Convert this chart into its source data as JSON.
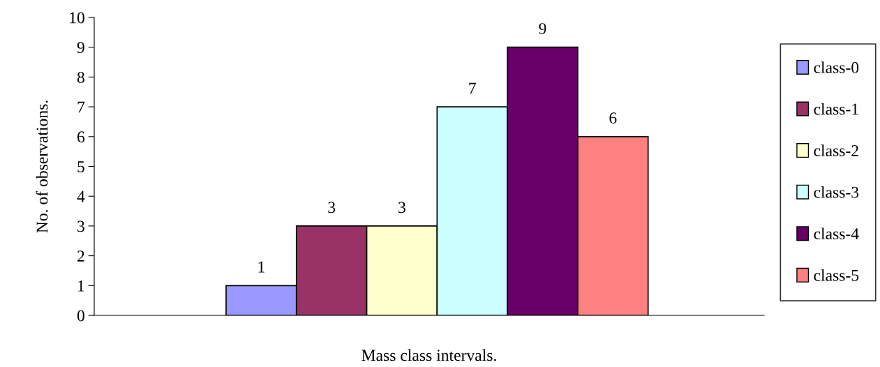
{
  "chart_data": {
    "type": "bar",
    "xlabel": "Mass class intervals.",
    "ylabel": "No. of observations.",
    "categories": [
      null
    ],
    "series": [
      {
        "name": "class-0",
        "color": "#9999ff",
        "values": [
          1
        ]
      },
      {
        "name": "class-1",
        "color": "#993366",
        "values": [
          3
        ]
      },
      {
        "name": "class-2",
        "color": "#ffffcc",
        "values": [
          3
        ]
      },
      {
        "name": "class-3",
        "color": "#ccffff",
        "values": [
          7
        ]
      },
      {
        "name": "class-4",
        "color": "#660066",
        "values": [
          9
        ]
      },
      {
        "name": "class-5",
        "color": "#ff8080",
        "values": [
          6
        ]
      }
    ],
    "ylim": [
      0,
      10
    ],
    "yticks": [
      0,
      1,
      2,
      3,
      4,
      5,
      6,
      7,
      8,
      9,
      10
    ],
    "data_labels": true,
    "grid": false,
    "legend": "right",
    "tick_labels": "y"
  }
}
